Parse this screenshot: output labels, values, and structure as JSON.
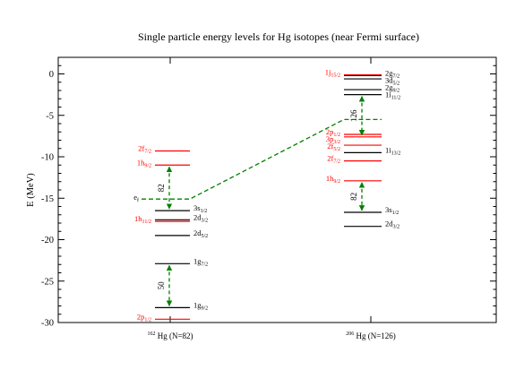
{
  "chart_data": {
    "type": "level-scheme",
    "title": "Single particle energy levels for Hg isotopes (near Fermi surface)",
    "ylabel": "E (MeV)",
    "ylim": [
      -30,
      2
    ],
    "yticks": [
      0,
      -5,
      -10,
      -15,
      -20,
      -25,
      -30
    ],
    "grid": false,
    "colors": {
      "proton": "#ff0000",
      "neutron": "#000000",
      "fermi": "#008000",
      "arrow": "#008000",
      "frame": "#000000"
    },
    "columns": [
      {
        "label_sup": "162",
        "label_main": "Hg (N=82)",
        "proton_levels": [
          {
            "main": "2f",
            "sub": "7/2",
            "energy": -9.3
          },
          {
            "main": "1h",
            "sub": "9/2",
            "energy": -11.0
          },
          {
            "main": "1h",
            "sub": "11/2",
            "energy": -17.8
          },
          {
            "main": "2p",
            "sub": "1/2",
            "energy": -29.6
          }
        ],
        "neutron_levels": [
          {
            "main": "3s",
            "sub": "1/2",
            "energy": -16.5
          },
          {
            "main": "2d",
            "sub": "3/2",
            "energy": -17.6
          },
          {
            "main": "2d",
            "sub": "5/2",
            "energy": -19.5
          },
          {
            "main": "1g",
            "sub": "7/2",
            "energy": -22.9
          },
          {
            "main": "1g",
            "sub": "9/2",
            "energy": -28.2
          }
        ],
        "fermi": {
          "main": "e",
          "sub": "f",
          "energy": -15.1
        },
        "gaps": [
          {
            "label": "82",
            "from": -11.0,
            "to": -16.5
          },
          {
            "label": "50",
            "from": -22.9,
            "to": -28.2
          }
        ]
      },
      {
        "label_sup": "206",
        "label_main": "Hg (N=126)",
        "proton_levels": [
          {
            "main": "1j",
            "sub": "15/2",
            "energy": -0.1
          },
          {
            "main": "2p",
            "sub": "1/2",
            "energy": -7.3
          },
          {
            "main": "3p",
            "sub": "3/2",
            "energy": -7.6
          },
          {
            "main": "2f",
            "sub": "5/2",
            "energy": -8.6
          },
          {
            "main": "2f",
            "sub": "7/2",
            "energy": -10.5
          },
          {
            "main": "1h",
            "sub": "9/2",
            "energy": -12.9
          }
        ],
        "neutron_levels": [
          {
            "main": "2g",
            "sub": "7/2",
            "energy": -0.2
          },
          {
            "main": "3d",
            "sub": "5/2",
            "energy": -0.6
          },
          {
            "main": "2g",
            "sub": "9/2",
            "energy": -1.9
          },
          {
            "main": "1i",
            "sub": "11/2",
            "energy": -2.5
          },
          {
            "main": "1i",
            "sub": "13/2",
            "energy": -9.5
          },
          {
            "main": "3s",
            "sub": "1/2",
            "energy": -16.7
          },
          {
            "main": "2d",
            "sub": "3/2",
            "energy": -18.4
          }
        ],
        "fermi": {
          "energy": -5.5
        },
        "gaps": [
          {
            "label": "126",
            "from": -2.5,
            "to": -7.6
          },
          {
            "label": "82",
            "from": -12.9,
            "to": -16.7
          }
        ]
      }
    ]
  }
}
